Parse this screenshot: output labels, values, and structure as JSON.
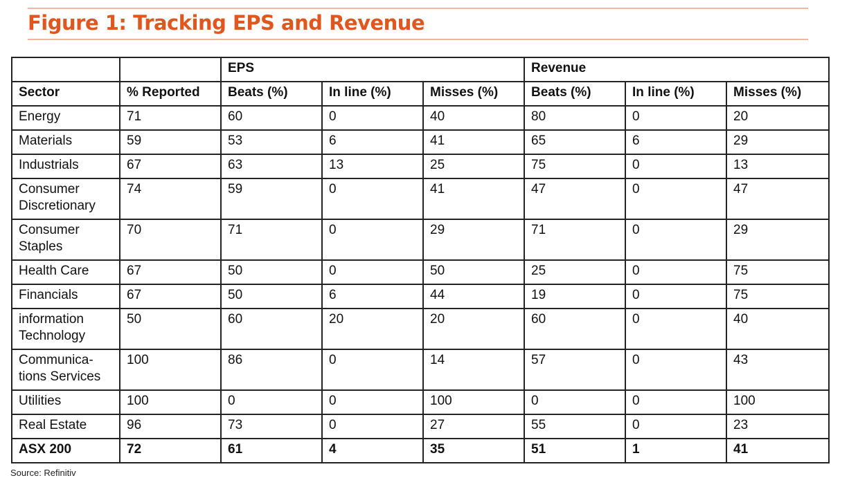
{
  "title": "Figure 1: Tracking EPS and Revenue",
  "groups": {
    "eps": "EPS",
    "revenue": "Revenue"
  },
  "columns": [
    "Sector",
    "% Reported",
    "Beats (%)",
    "In line (%)",
    "Misses (%)",
    "Beats (%)",
    "In line (%)",
    "Misses (%)"
  ],
  "rows": [
    {
      "sector": "Energy",
      "reported": "71",
      "eps_beats": "60",
      "eps_inline": "0",
      "eps_misses": "40",
      "rev_beats": "80",
      "rev_inline": "0",
      "rev_misses": "20"
    },
    {
      "sector": "Materials",
      "reported": "59",
      "eps_beats": "53",
      "eps_inline": "6",
      "eps_misses": "41",
      "rev_beats": "65",
      "rev_inline": "6",
      "rev_misses": "29"
    },
    {
      "sector": "Industrials",
      "reported": "67",
      "eps_beats": "63",
      "eps_inline": "13",
      "eps_misses": "25",
      "rev_beats": "75",
      "rev_inline": "0",
      "rev_misses": "13"
    },
    {
      "sector_line1": "Consumer",
      "sector_line2": "Discretionary",
      "reported": "74",
      "eps_beats": "59",
      "eps_inline": "0",
      "eps_misses": "41",
      "rev_beats": "47",
      "rev_inline": "0",
      "rev_misses": "47"
    },
    {
      "sector_line1": "Consumer",
      "sector_line2": "Staples",
      "reported": "70",
      "eps_beats": "71",
      "eps_inline": "0",
      "eps_misses": "29",
      "rev_beats": "71",
      "rev_inline": "0",
      "rev_misses": "29"
    },
    {
      "sector": "Health Care",
      "reported": "67",
      "eps_beats": "50",
      "eps_inline": "0",
      "eps_misses": "50",
      "rev_beats": "25",
      "rev_inline": "0",
      "rev_misses": "75"
    },
    {
      "sector": "Financials",
      "reported": "67",
      "eps_beats": "50",
      "eps_inline": "6",
      "eps_misses": "44",
      "rev_beats": "19",
      "rev_inline": "0",
      "rev_misses": "75"
    },
    {
      "sector_line1": "information",
      "sector_line2": "Technology",
      "reported": "50",
      "eps_beats": "60",
      "eps_inline": "20",
      "eps_misses": "20",
      "rev_beats": "60",
      "rev_inline": "0",
      "rev_misses": "40"
    },
    {
      "sector_line1": "Communica-",
      "sector_line2": "tions Services",
      "reported": "100",
      "eps_beats": "86",
      "eps_inline": "0",
      "eps_misses": "14",
      "rev_beats": "57",
      "rev_inline": "0",
      "rev_misses": "43"
    },
    {
      "sector": "Utilities",
      "reported": "100",
      "eps_beats": "0",
      "eps_inline": "0",
      "eps_misses": "100",
      "rev_beats": "0",
      "rev_inline": "0",
      "rev_misses": "100"
    },
    {
      "sector": "Real Estate",
      "reported": "96",
      "eps_beats": "73",
      "eps_inline": "0",
      "eps_misses": "27",
      "rev_beats": "55",
      "rev_inline": "0",
      "rev_misses": "23"
    }
  ],
  "total": {
    "sector": "ASX 200",
    "reported": "72",
    "eps_beats": "61",
    "eps_inline": "4",
    "eps_misses": "35",
    "rev_beats": "51",
    "rev_inline": "1",
    "rev_misses": "41"
  },
  "source": "Source: Refinitiv",
  "colors": {
    "title": "#e0561f",
    "rule": "#f2b6a0",
    "border": "#222222"
  }
}
